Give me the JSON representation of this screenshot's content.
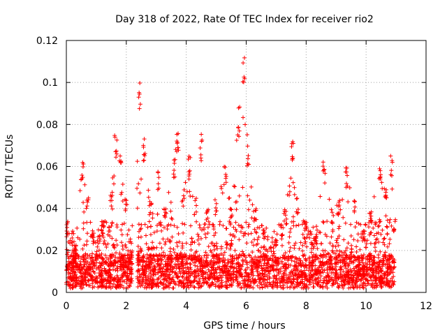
{
  "chart_data": {
    "type": "scatter",
    "title": "Day 318 of 2022, Rate Of TEC Index for receiver rio2",
    "xlabel": "GPS time / hours",
    "ylabel": "ROTI / TECUs",
    "xlim": [
      0,
      12
    ],
    "ylim": [
      0,
      0.12
    ],
    "x_ticks": [
      "0",
      "2",
      "4",
      "6",
      "8",
      "10",
      "12"
    ],
    "y_ticks": [
      "0",
      "0.02",
      "0.04",
      "0.06",
      "0.08",
      "0.1",
      "0.12"
    ],
    "grid": true,
    "marker": "+",
    "color": "#ff0000",
    "data_x_range": [
      0,
      10.95
    ],
    "data_gap_hours": [
      2.2,
      2.35
    ],
    "envelope": [
      {
        "x": 0.05,
        "y": 0.034
      },
      {
        "x": 0.3,
        "y": 0.022
      },
      {
        "x": 0.55,
        "y": 0.065
      },
      {
        "x": 0.7,
        "y": 0.048
      },
      {
        "x": 0.9,
        "y": 0.03
      },
      {
        "x": 1.2,
        "y": 0.032
      },
      {
        "x": 1.5,
        "y": 0.048
      },
      {
        "x": 1.65,
        "y": 0.076
      },
      {
        "x": 1.8,
        "y": 0.067
      },
      {
        "x": 2.0,
        "y": 0.045
      },
      {
        "x": 2.15,
        "y": 0.02
      },
      {
        "x": 2.45,
        "y": 0.102
      },
      {
        "x": 2.6,
        "y": 0.074
      },
      {
        "x": 2.8,
        "y": 0.045
      },
      {
        "x": 3.05,
        "y": 0.059
      },
      {
        "x": 3.3,
        "y": 0.04
      },
      {
        "x": 3.6,
        "y": 0.064
      },
      {
        "x": 3.72,
        "y": 0.078
      },
      {
        "x": 3.9,
        "y": 0.05
      },
      {
        "x": 4.1,
        "y": 0.065
      },
      {
        "x": 4.3,
        "y": 0.045
      },
      {
        "x": 4.5,
        "y": 0.078
      },
      {
        "x": 4.7,
        "y": 0.042
      },
      {
        "x": 5.0,
        "y": 0.045
      },
      {
        "x": 5.3,
        "y": 0.06
      },
      {
        "x": 5.5,
        "y": 0.04
      },
      {
        "x": 5.75,
        "y": 0.09
      },
      {
        "x": 5.92,
        "y": 0.113
      },
      {
        "x": 6.05,
        "y": 0.07
      },
      {
        "x": 6.3,
        "y": 0.04
      },
      {
        "x": 6.6,
        "y": 0.03
      },
      {
        "x": 7.0,
        "y": 0.025
      },
      {
        "x": 7.3,
        "y": 0.04
      },
      {
        "x": 7.55,
        "y": 0.076
      },
      {
        "x": 7.7,
        "y": 0.045
      },
      {
        "x": 8.0,
        "y": 0.035
      },
      {
        "x": 8.3,
        "y": 0.03
      },
      {
        "x": 8.6,
        "y": 0.063
      },
      {
        "x": 8.85,
        "y": 0.04
      },
      {
        "x": 9.1,
        "y": 0.045
      },
      {
        "x": 9.35,
        "y": 0.06
      },
      {
        "x": 9.6,
        "y": 0.045
      },
      {
        "x": 9.9,
        "y": 0.03
      },
      {
        "x": 10.15,
        "y": 0.04
      },
      {
        "x": 10.45,
        "y": 0.065
      },
      {
        "x": 10.65,
        "y": 0.05
      },
      {
        "x": 10.85,
        "y": 0.065
      },
      {
        "x": 10.95,
        "y": 0.035
      }
    ]
  }
}
